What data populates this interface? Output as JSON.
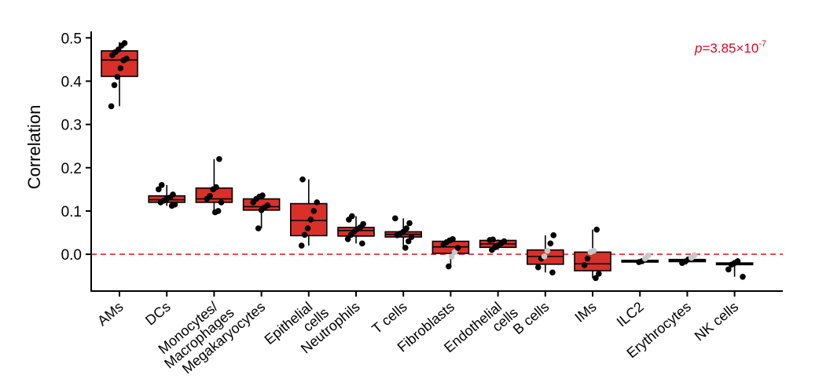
{
  "chart_data": {
    "type": "box",
    "ylabel": "Correlation",
    "xlabel": "",
    "ylim": [
      -0.085,
      0.515
    ],
    "yticks": [
      0.0,
      0.1,
      0.2,
      0.3,
      0.4,
      0.5
    ],
    "ytick_labels": [
      "0.0",
      "0.1",
      "0.2",
      "0.3",
      "0.4",
      "0.5"
    ],
    "reference_line": {
      "y": 0,
      "style": "dashed",
      "color": "#e8232f"
    },
    "annotation": {
      "p_label": "p",
      "p_value": "=3.85×10",
      "p_exponent": "-7"
    },
    "box_color": "#d9302a",
    "point_color": "#000000",
    "point_color_light": "#c8c8c8",
    "categories": [
      {
        "label": [
          "AMs"
        ],
        "q1": 0.411,
        "median": 0.449,
        "q3": 0.47,
        "whisker_low": 0.342,
        "whisker_high": 0.49,
        "points": [
          [
            0.342,
            0
          ],
          [
            0.391,
            0
          ],
          [
            0.41,
            0
          ],
          [
            0.43,
            0
          ],
          [
            0.448,
            0
          ],
          [
            0.452,
            0
          ],
          [
            0.46,
            0
          ],
          [
            0.467,
            0
          ],
          [
            0.473,
            0
          ],
          [
            0.482,
            0
          ],
          [
            0.488,
            0
          ]
        ]
      },
      {
        "label": [
          "DCs"
        ],
        "q1": 0.12,
        "median": 0.126,
        "q3": 0.135,
        "whisker_low": 0.112,
        "whisker_high": 0.16,
        "points": [
          [
            0.112,
            0
          ],
          [
            0.115,
            0
          ],
          [
            0.12,
            0
          ],
          [
            0.124,
            0
          ],
          [
            0.128,
            0
          ],
          [
            0.131,
            0
          ],
          [
            0.138,
            0
          ],
          [
            0.15,
            0
          ],
          [
            0.16,
            0
          ]
        ]
      },
      {
        "label": [
          "Monocytes/",
          "Macrophages"
        ],
        "q1": 0.12,
        "median": 0.128,
        "q3": 0.153,
        "whisker_low": 0.097,
        "whisker_high": 0.22,
        "points": [
          [
            0.097,
            0
          ],
          [
            0.1,
            0
          ],
          [
            0.12,
            0
          ],
          [
            0.128,
            0
          ],
          [
            0.135,
            0
          ],
          [
            0.15,
            0
          ],
          [
            0.155,
            0
          ],
          [
            0.22,
            0
          ]
        ]
      },
      {
        "label": [
          "Megakaryocytes"
        ],
        "q1": 0.102,
        "median": 0.11,
        "q3": 0.128,
        "whisker_low": 0.06,
        "whisker_high": 0.136,
        "points": [
          [
            0.06,
            0
          ],
          [
            0.102,
            0
          ],
          [
            0.108,
            0
          ],
          [
            0.113,
            0
          ],
          [
            0.12,
            0
          ],
          [
            0.128,
            0
          ],
          [
            0.133,
            0
          ],
          [
            0.136,
            0
          ]
        ]
      },
      {
        "label": [
          "Epithelial",
          "cells"
        ],
        "q1": 0.043,
        "median": 0.078,
        "q3": 0.117,
        "whisker_low": 0.02,
        "whisker_high": 0.173,
        "points": [
          [
            0.02,
            0
          ],
          [
            0.045,
            0
          ],
          [
            0.06,
            0
          ],
          [
            0.08,
            0
          ],
          [
            0.1,
            0
          ],
          [
            0.12,
            0
          ],
          [
            0.173,
            0
          ]
        ]
      },
      {
        "label": [
          "Neutrophils"
        ],
        "q1": 0.042,
        "median": 0.055,
        "q3": 0.062,
        "whisker_low": 0.025,
        "whisker_high": 0.088,
        "points": [
          [
            0.025,
            0
          ],
          [
            0.035,
            0
          ],
          [
            0.045,
            0
          ],
          [
            0.052,
            0
          ],
          [
            0.058,
            0
          ],
          [
            0.062,
            0
          ],
          [
            0.07,
            0
          ],
          [
            0.08,
            0
          ],
          [
            0.088,
            0
          ]
        ]
      },
      {
        "label": [
          "T cells"
        ],
        "q1": 0.04,
        "median": 0.046,
        "q3": 0.052,
        "whisker_low": 0.015,
        "whisker_high": 0.083,
        "points": [
          [
            0.015,
            0
          ],
          [
            0.03,
            0
          ],
          [
            0.04,
            0
          ],
          [
            0.044,
            0
          ],
          [
            0.048,
            0
          ],
          [
            0.052,
            0
          ],
          [
            0.06,
            0
          ],
          [
            0.072,
            0
          ],
          [
            0.083,
            0
          ]
        ]
      },
      {
        "label": [
          "Fibroblasts"
        ],
        "q1": 0.002,
        "median": 0.017,
        "q3": 0.03,
        "whisker_low": -0.028,
        "whisker_high": 0.035,
        "points": [
          [
            -0.028,
            0
          ],
          [
            -0.005,
            1
          ],
          [
            0.005,
            1
          ],
          [
            0.015,
            0
          ],
          [
            0.022,
            0
          ],
          [
            0.028,
            0
          ],
          [
            0.032,
            0
          ],
          [
            0.035,
            0
          ]
        ]
      },
      {
        "label": [
          "Endothelial",
          "cells"
        ],
        "q1": 0.016,
        "median": 0.024,
        "q3": 0.032,
        "whisker_low": 0.01,
        "whisker_high": 0.034,
        "points": [
          [
            0.01,
            0
          ],
          [
            0.016,
            0
          ],
          [
            0.02,
            0
          ],
          [
            0.025,
            0
          ],
          [
            0.03,
            0
          ],
          [
            0.033,
            0
          ],
          [
            0.034,
            0
          ]
        ]
      },
      {
        "label": [
          "B cells"
        ],
        "q1": -0.023,
        "median": -0.005,
        "q3": 0.01,
        "whisker_low": -0.042,
        "whisker_high": 0.044,
        "points": [
          [
            -0.042,
            0
          ],
          [
            -0.03,
            0
          ],
          [
            -0.01,
            0
          ],
          [
            -0.005,
            1
          ],
          [
            0.008,
            1
          ],
          [
            0.025,
            0
          ],
          [
            0.044,
            0
          ]
        ]
      },
      {
        "label": [
          "IMs"
        ],
        "q1": -0.038,
        "median": -0.022,
        "q3": 0.005,
        "whisker_low": -0.055,
        "whisker_high": 0.057,
        "points": [
          [
            -0.055,
            0
          ],
          [
            -0.045,
            0
          ],
          [
            -0.025,
            0
          ],
          [
            -0.01,
            0
          ],
          [
            0.005,
            1
          ],
          [
            0.008,
            1
          ],
          [
            0.057,
            0
          ]
        ]
      },
      {
        "label": [
          "ILC2"
        ],
        "q1": -0.018,
        "median": -0.016,
        "q3": -0.014,
        "whisker_low": -0.018,
        "whisker_high": -0.014,
        "points": [
          [
            -0.018,
            0
          ],
          [
            -0.016,
            0
          ],
          [
            -0.01,
            1
          ],
          [
            -0.003,
            1
          ]
        ]
      },
      {
        "label": [
          "Erythrocytes"
        ],
        "q1": -0.017,
        "median": -0.015,
        "q3": -0.012,
        "whisker_low": -0.02,
        "whisker_high": -0.01,
        "points": [
          [
            -0.02,
            0
          ],
          [
            -0.017,
            0
          ],
          [
            -0.012,
            0
          ],
          [
            -0.008,
            1
          ],
          [
            -0.002,
            1
          ]
        ]
      },
      {
        "label": [
          "NK cells"
        ],
        "q1": -0.024,
        "median": -0.022,
        "q3": -0.02,
        "whisker_low": -0.052,
        "whisker_high": -0.016,
        "points": [
          [
            -0.052,
            0
          ],
          [
            -0.035,
            0
          ],
          [
            -0.024,
            0
          ],
          [
            -0.02,
            0
          ],
          [
            -0.016,
            0
          ]
        ]
      }
    ]
  }
}
